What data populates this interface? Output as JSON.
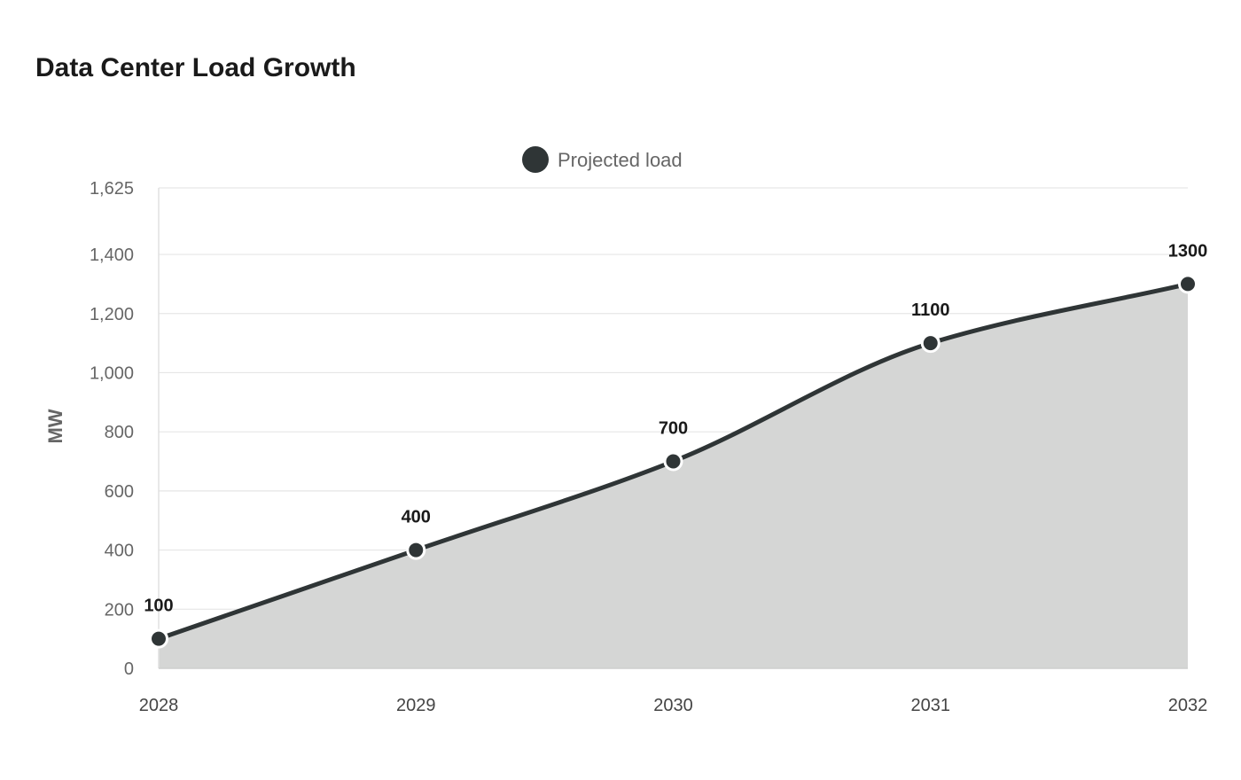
{
  "chart_data": {
    "type": "area",
    "title": "Data Center Load Growth",
    "xlabel": "",
    "ylabel": "MW",
    "x": [
      "2028",
      "2029",
      "2030",
      "2031",
      "2032"
    ],
    "series": [
      {
        "name": "Projected load",
        "values": [
          100,
          400,
          700,
          1100,
          1300
        ],
        "color": "#2f3536",
        "fill_color": "#d5d6d5"
      }
    ],
    "ylim": [
      0,
      1625
    ],
    "yticks": [
      0,
      200,
      400,
      600,
      800,
      1000,
      1200,
      1400,
      1625
    ],
    "ytick_labels": [
      "0",
      "200",
      "400",
      "600",
      "800",
      "1,000",
      "1,200",
      "1,400",
      "1,625"
    ],
    "grid": true,
    "legend_position": "top-center",
    "data_labels": true,
    "smooth": true
  }
}
